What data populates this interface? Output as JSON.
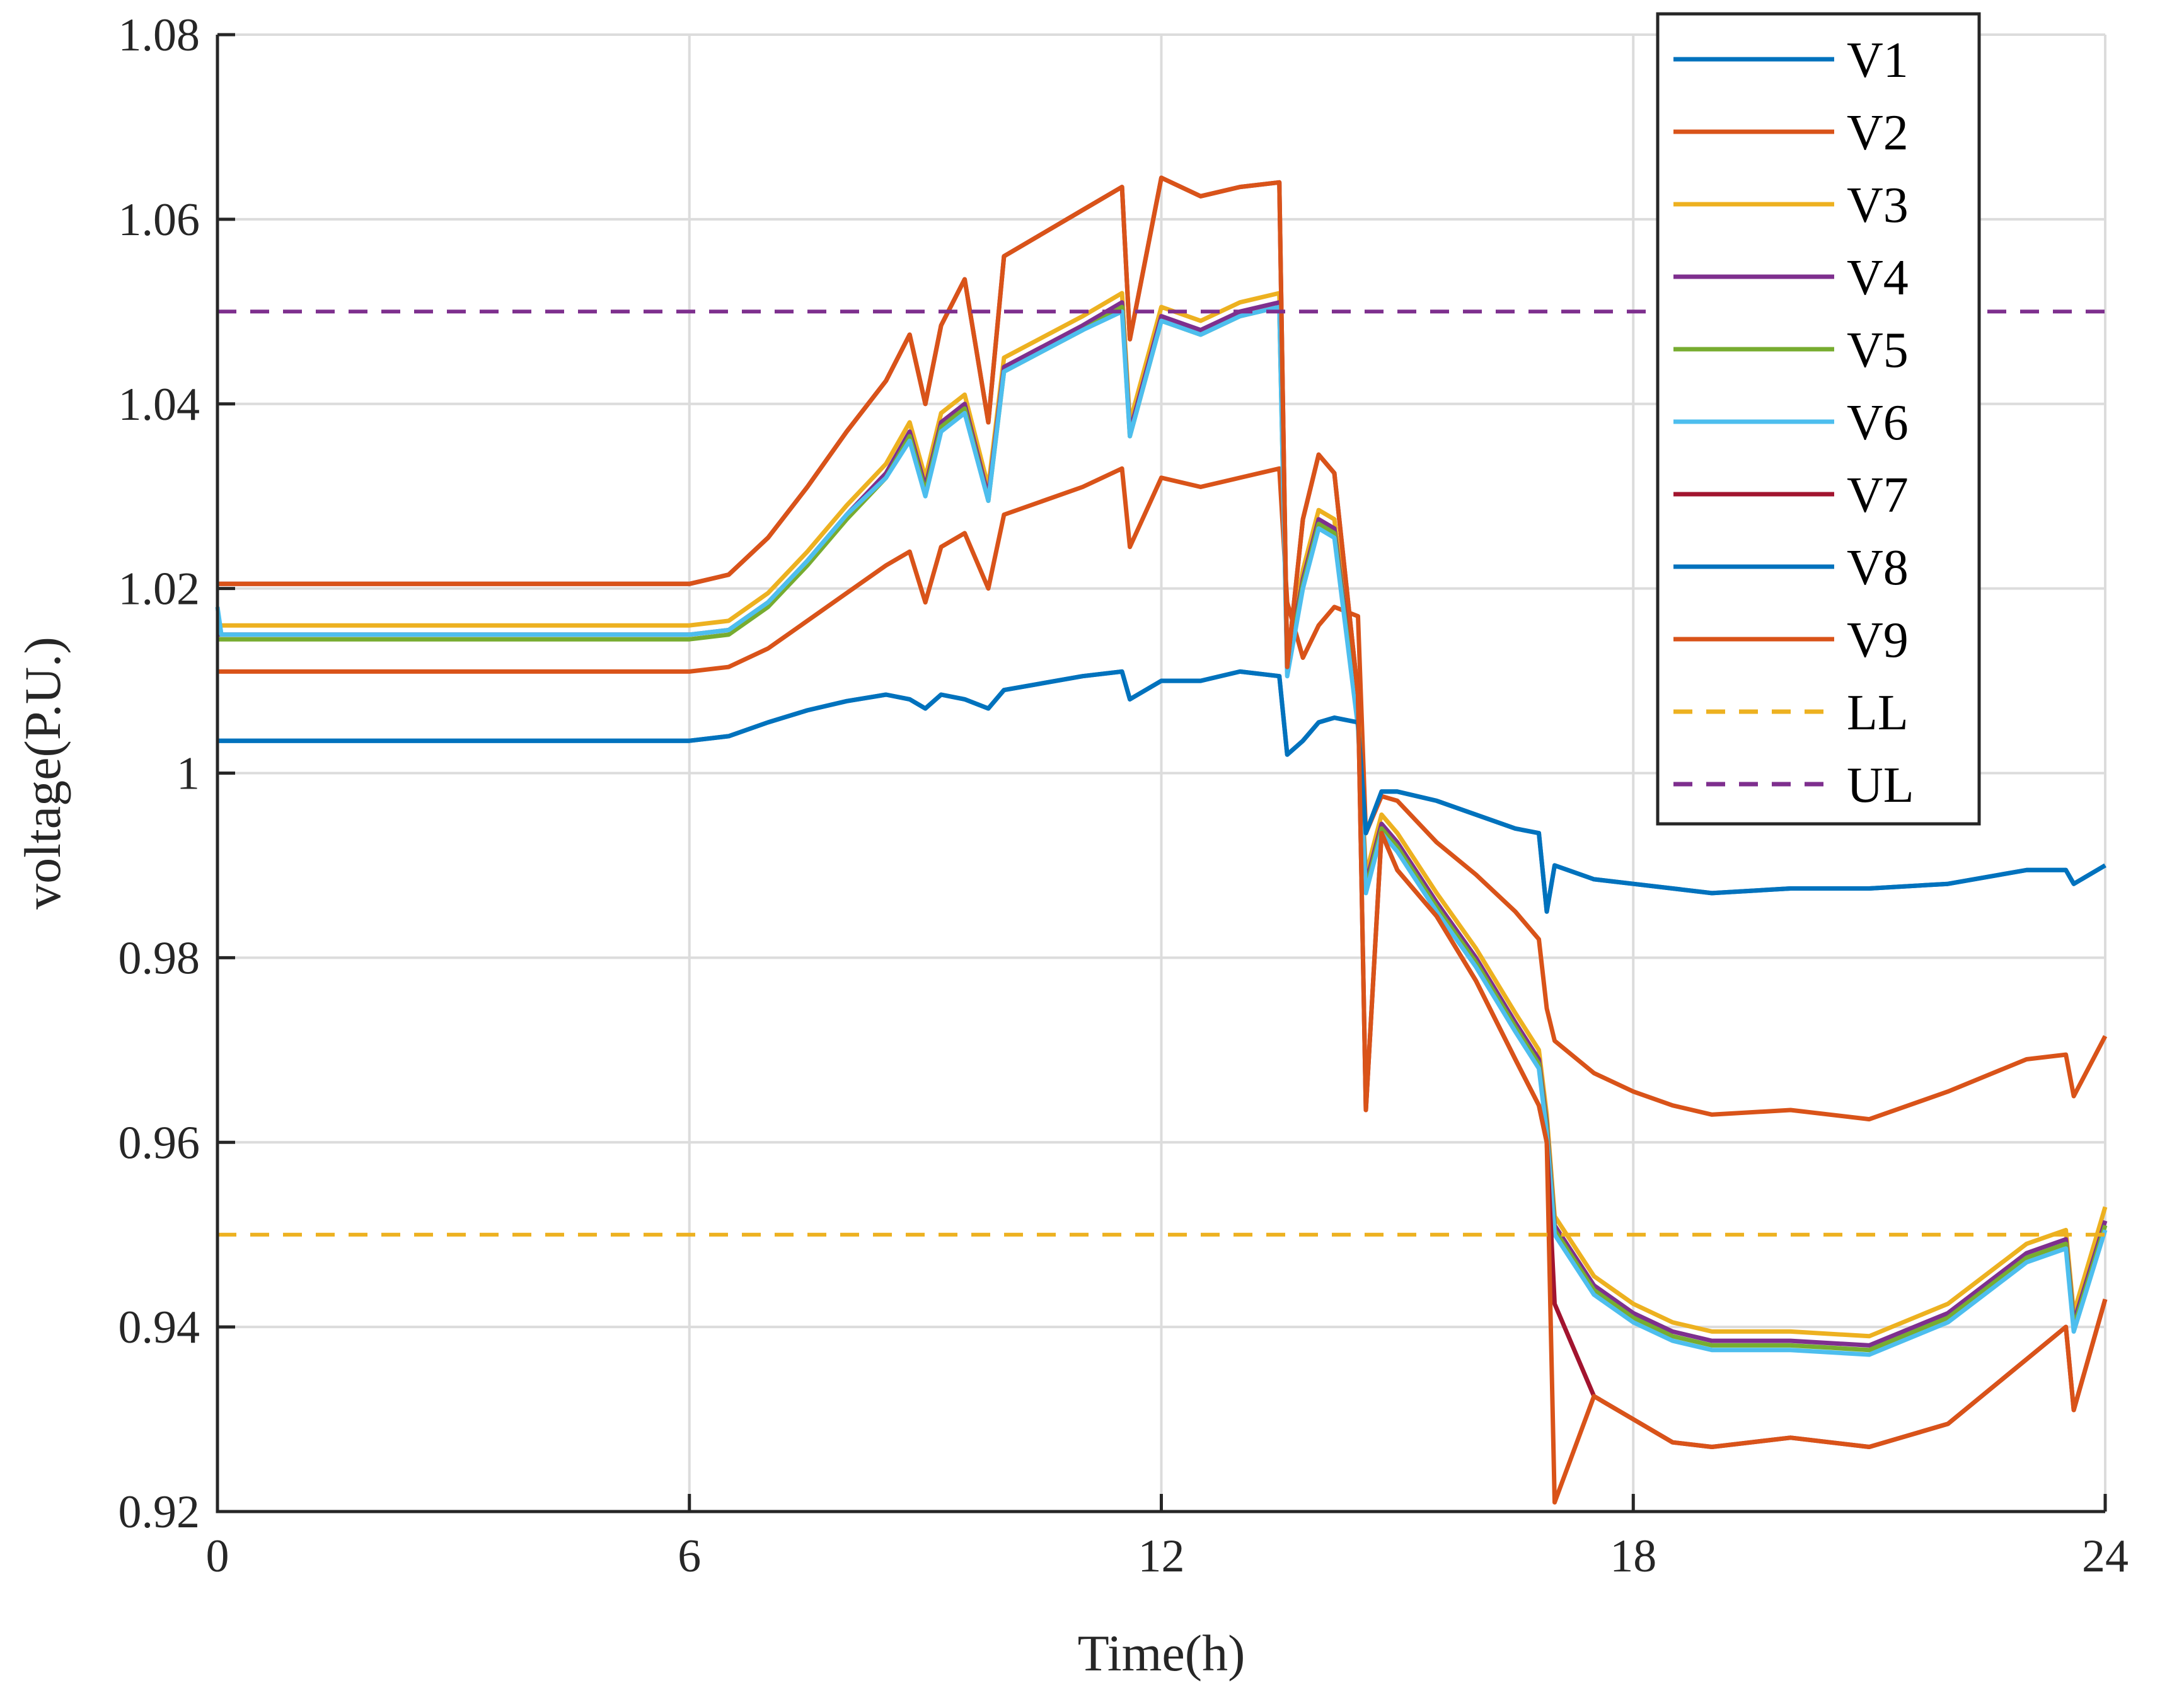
{
  "chart_data": {
    "type": "line",
    "title": "",
    "xlabel": "Time(h)",
    "ylabel": "voltage(P.U.)",
    "xlim": [
      0,
      24
    ],
    "ylim": [
      0.92,
      1.08
    ],
    "xticks": [
      0,
      6,
      12,
      18,
      24
    ],
    "xtick_labels": [
      "0",
      "6",
      "12",
      "18",
      "24"
    ],
    "yticks": [
      0.92,
      0.94,
      0.96,
      0.98,
      1.0,
      1.02,
      1.04,
      1.06,
      1.08
    ],
    "ytick_labels": [
      "0.92",
      "0.94",
      "0.96",
      "0.98",
      "1",
      "1.02",
      "1.04",
      "1.06",
      "1.08"
    ],
    "grid": true,
    "legend_position": "top-right",
    "series": [
      {
        "name": "V1",
        "color": "#0072BD",
        "dash": "solid",
        "x": [
          0,
          6,
          6.5,
          7,
          7.5,
          8,
          8.5,
          8.8,
          9,
          9.2,
          9.5,
          9.8,
          10,
          11,
          11.5,
          11.6,
          12,
          12.5,
          13,
          13.5,
          13.6,
          13.8,
          14,
          14.2,
          14.5,
          14.6,
          14.8,
          15,
          15.5,
          16,
          16.5,
          16.8,
          16.9,
          17,
          17.5,
          18,
          18.5,
          19,
          20,
          21,
          22,
          23,
          23.5,
          23.6,
          24
        ],
        "y": [
          1.0035,
          1.0035,
          1.004,
          1.0055,
          1.0068,
          1.0078,
          1.0085,
          1.008,
          1.007,
          1.0085,
          1.008,
          1.007,
          1.009,
          1.0105,
          1.011,
          1.008,
          1.01,
          1.01,
          1.011,
          1.0105,
          1.002,
          1.0035,
          1.0055,
          1.006,
          1.0055,
          0.9935,
          0.998,
          0.998,
          0.997,
          0.9955,
          0.994,
          0.9935,
          0.985,
          0.99,
          0.9885,
          0.988,
          0.9875,
          0.987,
          0.9875,
          0.9875,
          0.988,
          0.9895,
          0.9895,
          0.988,
          0.99
        ]
      },
      {
        "name": "V2",
        "color": "#D95319",
        "dash": "solid",
        "x": [
          0,
          6,
          6.5,
          7,
          7.5,
          8,
          8.5,
          8.8,
          9,
          9.2,
          9.5,
          9.8,
          10,
          11,
          11.5,
          11.6,
          12,
          12.5,
          13,
          13.5,
          13.6,
          13.8,
          14,
          14.2,
          14.5,
          14.6,
          14.8,
          15,
          15.5,
          16,
          16.5,
          16.8,
          16.9,
          17,
          17.5,
          18,
          18.5,
          19,
          20,
          21,
          22,
          23,
          23.5,
          23.6,
          24
        ],
        "y": [
          1.011,
          1.011,
          1.0115,
          1.0135,
          1.0165,
          1.0195,
          1.0225,
          1.024,
          1.0185,
          1.0245,
          1.026,
          1.02,
          1.028,
          1.031,
          1.033,
          1.0245,
          1.032,
          1.031,
          1.032,
          1.033,
          1.0185,
          1.0125,
          1.016,
          1.018,
          1.017,
          0.9935,
          0.9975,
          0.997,
          0.9925,
          0.989,
          0.985,
          0.982,
          0.9745,
          0.971,
          0.9675,
          0.9655,
          0.964,
          0.963,
          0.9635,
          0.9625,
          0.9655,
          0.969,
          0.9695,
          0.965,
          0.9715
        ]
      },
      {
        "name": "V3",
        "color": "#EDB120",
        "dash": "solid",
        "x": [
          0,
          6,
          6.5,
          7,
          7.5,
          8,
          8.5,
          8.8,
          9,
          9.2,
          9.5,
          9.8,
          10,
          11,
          11.5,
          11.6,
          12,
          12.5,
          13,
          13.5,
          13.6,
          13.8,
          14,
          14.2,
          14.5,
          14.6,
          14.8,
          15,
          15.5,
          16,
          16.5,
          16.8,
          16.9,
          17,
          17.5,
          18,
          18.5,
          19,
          20,
          21,
          22,
          23,
          23.5,
          23.6,
          24
        ],
        "y": [
          1.016,
          1.016,
          1.0165,
          1.0195,
          1.024,
          1.029,
          1.0335,
          1.038,
          1.032,
          1.039,
          1.041,
          1.031,
          1.045,
          1.0495,
          1.052,
          1.038,
          1.0505,
          1.049,
          1.051,
          1.052,
          1.0125,
          1.022,
          1.0285,
          1.0275,
          1.007,
          0.989,
          0.9955,
          0.9935,
          0.987,
          0.981,
          0.974,
          0.97,
          0.963,
          0.952,
          0.9455,
          0.9425,
          0.9405,
          0.9395,
          0.9395,
          0.939,
          0.9425,
          0.949,
          0.9505,
          0.9415,
          0.953
        ]
      },
      {
        "name": "V4",
        "color": "#7E2F8E",
        "dash": "solid",
        "x": [
          0,
          6,
          6.5,
          7,
          7.5,
          8,
          8.5,
          8.8,
          9,
          9.2,
          9.5,
          9.8,
          10,
          11,
          11.5,
          11.6,
          12,
          12.5,
          13,
          13.5,
          13.6,
          13.8,
          14,
          14.2,
          14.5,
          14.6,
          14.8,
          15,
          15.5,
          16,
          16.5,
          16.8,
          16.9,
          17,
          17.5,
          18,
          18.5,
          19,
          20,
          21,
          22,
          23,
          23.5,
          23.6,
          24
        ],
        "y": [
          1.015,
          1.015,
          1.0155,
          1.0185,
          1.023,
          1.028,
          1.0325,
          1.037,
          1.031,
          1.038,
          1.04,
          1.03,
          1.044,
          1.0485,
          1.051,
          1.037,
          1.0495,
          1.048,
          1.05,
          1.051,
          1.0115,
          1.021,
          1.0275,
          1.0265,
          1.006,
          0.988,
          0.9945,
          0.9925,
          0.986,
          0.98,
          0.973,
          0.969,
          0.962,
          0.951,
          0.9445,
          0.9415,
          0.9395,
          0.9385,
          0.9385,
          0.938,
          0.9415,
          0.948,
          0.9495,
          0.9405,
          0.9515
        ]
      },
      {
        "name": "V5",
        "color": "#77AC30",
        "dash": "solid",
        "x": [
          0,
          6,
          6.5,
          7,
          7.5,
          8,
          8.5,
          8.8,
          9,
          9.2,
          9.5,
          9.8,
          10,
          11,
          11.5,
          11.6,
          12,
          12.5,
          13,
          13.5,
          13.6,
          13.8,
          14,
          14.2,
          14.5,
          14.6,
          14.8,
          15,
          15.5,
          16,
          16.5,
          16.8,
          16.9,
          17,
          17.5,
          18,
          18.5,
          19,
          20,
          21,
          22,
          23,
          23.5,
          23.6,
          24
        ],
        "y": [
          1.0145,
          1.0145,
          1.015,
          1.018,
          1.0225,
          1.0275,
          1.032,
          1.0365,
          1.0305,
          1.0375,
          1.0395,
          1.0295,
          1.0435,
          1.048,
          1.0505,
          1.0365,
          1.049,
          1.0475,
          1.0495,
          1.0505,
          1.011,
          1.0205,
          1.027,
          1.026,
          1.0055,
          0.9875,
          0.994,
          0.992,
          0.9855,
          0.9795,
          0.9725,
          0.9685,
          0.9615,
          0.9505,
          0.944,
          0.941,
          0.939,
          0.938,
          0.938,
          0.9375,
          0.941,
          0.9475,
          0.949,
          0.94,
          0.951
        ]
      },
      {
        "name": "V6",
        "color": "#4DBEEE",
        "dash": "solid",
        "x": [
          0,
          0.05,
          6,
          6.5,
          7,
          7.5,
          8,
          8.5,
          8.8,
          9,
          9.2,
          9.5,
          9.8,
          10,
          11,
          11.5,
          11.6,
          12,
          12.5,
          13,
          13.5,
          13.6,
          13.8,
          14,
          14.2,
          14.5,
          14.6,
          14.8,
          15,
          15.5,
          16,
          16.5,
          16.8,
          16.9,
          17,
          17.5,
          18,
          18.5,
          19,
          20,
          21,
          22,
          23,
          23.5,
          23.6,
          24
        ],
        "y": [
          1.018,
          1.015,
          1.015,
          1.0155,
          1.0185,
          1.023,
          1.028,
          1.032,
          1.036,
          1.03,
          1.037,
          1.039,
          1.0295,
          1.0435,
          1.048,
          1.05,
          1.0365,
          1.049,
          1.0475,
          1.0495,
          1.0505,
          1.0105,
          1.02,
          1.0265,
          1.0255,
          1.005,
          0.987,
          0.9935,
          0.9915,
          0.985,
          0.979,
          0.972,
          0.968,
          0.961,
          0.95,
          0.9435,
          0.9405,
          0.9385,
          0.9375,
          0.9375,
          0.937,
          0.9405,
          0.947,
          0.9485,
          0.9395,
          0.9505
        ]
      },
      {
        "name": "V7",
        "color": "#A2142F",
        "dash": "solid",
        "x": [
          0,
          6,
          6.5,
          7,
          7.5,
          8,
          8.5,
          8.8,
          9,
          9.2,
          9.5,
          9.8,
          10,
          11,
          11.5,
          11.6,
          12,
          12.5,
          13,
          13.5,
          13.6,
          13.8,
          14,
          14.2,
          14.5,
          14.6,
          14.8,
          15,
          15.5,
          16,
          16.5,
          16.8,
          16.9,
          17,
          17.5,
          18,
          18.5,
          19,
          20,
          21,
          22,
          23,
          23.5,
          23.6,
          24
        ],
        "y": [
          1.0205,
          1.0205,
          1.0215,
          1.0255,
          1.031,
          1.037,
          1.0425,
          1.0475,
          1.04,
          1.0485,
          1.0535,
          1.038,
          1.056,
          1.061,
          1.0635,
          1.047,
          1.0645,
          1.0625,
          1.0635,
          1.064,
          1.0115,
          1.0275,
          1.0345,
          1.0325,
          1.0085,
          0.9635,
          0.9935,
          0.9895,
          0.9845,
          0.9775,
          0.969,
          0.964,
          0.96,
          0.9425,
          0.9325,
          0.93,
          0.9275,
          0.927,
          0.928,
          0.927,
          0.9295,
          0.9365,
          0.94,
          0.931,
          0.943
        ]
      },
      {
        "name": "V8",
        "color": "#0072BD",
        "dash": "solid",
        "x": [
          0,
          6,
          6.5,
          7,
          7.5,
          8,
          8.5,
          8.8,
          9,
          9.2,
          9.5,
          9.8,
          10,
          11,
          11.5,
          11.6,
          12,
          12.5,
          13,
          13.5,
          13.6,
          13.8,
          14,
          14.2,
          14.5,
          14.6,
          14.8,
          15,
          15.5,
          16,
          16.5,
          16.8,
          16.9,
          17,
          17.5,
          18,
          18.5,
          19,
          20,
          21,
          22,
          23,
          23.5,
          23.6,
          24
        ],
        "y": [
          1.0035,
          1.0035,
          1.004,
          1.0055,
          1.0068,
          1.0078,
          1.0085,
          1.008,
          1.007,
          1.0085,
          1.008,
          1.007,
          1.009,
          1.0105,
          1.011,
          1.008,
          1.01,
          1.01,
          1.011,
          1.0105,
          1.002,
          1.0035,
          1.0055,
          1.006,
          1.0055,
          0.9935,
          0.998,
          0.998,
          0.997,
          0.9955,
          0.994,
          0.9935,
          0.985,
          0.99,
          0.9885,
          0.988,
          0.9875,
          0.987,
          0.9875,
          0.9875,
          0.988,
          0.9895,
          0.9895,
          0.988,
          0.99
        ]
      },
      {
        "name": "V9",
        "color": "#D95319",
        "dash": "solid",
        "x": [
          0,
          6,
          6.5,
          7,
          7.5,
          8,
          8.5,
          8.8,
          9,
          9.2,
          9.5,
          9.8,
          10,
          11,
          11.5,
          11.6,
          12,
          12.5,
          13,
          13.5,
          13.6,
          13.8,
          14,
          14.2,
          14.5,
          14.6,
          14.8,
          15,
          15.5,
          16,
          16.5,
          16.8,
          16.9,
          17,
          17.5,
          18,
          18.5,
          19,
          20,
          21,
          22,
          23,
          23.5,
          23.6,
          24
        ],
        "y": [
          1.0205,
          1.0205,
          1.0215,
          1.0255,
          1.031,
          1.037,
          1.0425,
          1.0475,
          1.04,
          1.0485,
          1.0535,
          1.038,
          1.056,
          1.061,
          1.0635,
          1.047,
          1.0645,
          1.0625,
          1.0635,
          1.064,
          1.0115,
          1.0275,
          1.0345,
          1.0325,
          1.0085,
          0.9635,
          0.9935,
          0.9895,
          0.9845,
          0.9775,
          0.969,
          0.964,
          0.96,
          0.921,
          0.9325,
          0.93,
          0.9275,
          0.927,
          0.928,
          0.927,
          0.9295,
          0.9365,
          0.94,
          0.931,
          0.943
        ]
      },
      {
        "name": "LL",
        "color": "#EDB120",
        "dash": "dashed",
        "x": [
          0,
          24
        ],
        "y": [
          0.95,
          0.95
        ]
      },
      {
        "name": "UL",
        "color": "#7E2F8E",
        "dash": "dashed",
        "x": [
          0,
          24
        ],
        "y": [
          1.05,
          1.05
        ]
      }
    ]
  }
}
